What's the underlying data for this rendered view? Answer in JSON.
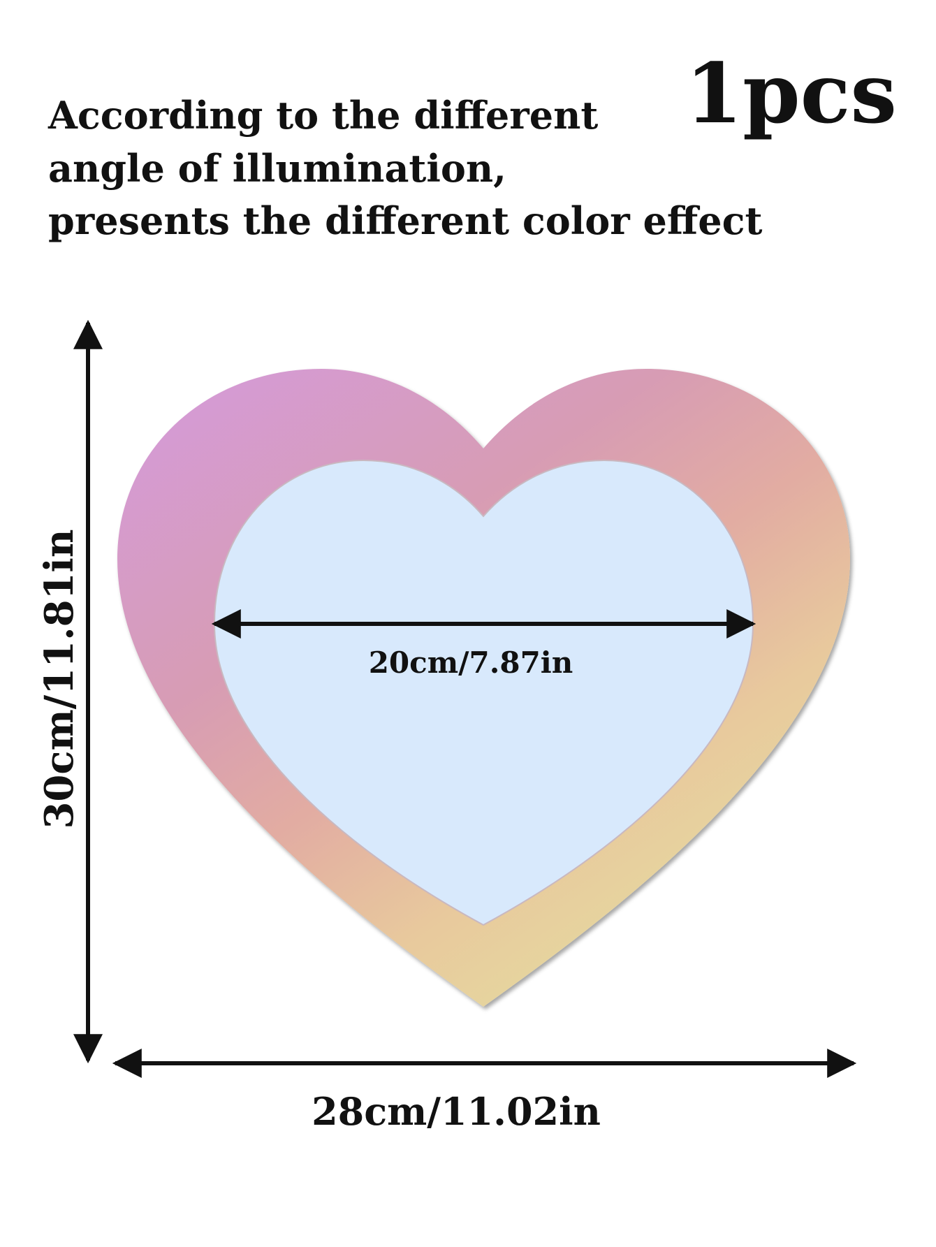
{
  "description": {
    "lines": [
      "According to the different",
      "angle of illumination,",
      "presents the different color effect"
    ]
  },
  "quantity": "1pcs",
  "dimensions": {
    "height": "30cm/11.81in",
    "inner_width": "20cm/7.87in",
    "width": "28cm/11.02in"
  }
}
